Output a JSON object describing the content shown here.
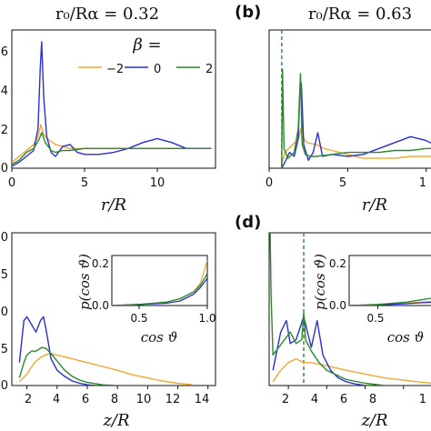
{
  "colors": {
    "orange": "#f0a830",
    "blue": "#2b2fd0",
    "green": "#2a8a2a",
    "vline": "#1f78b4"
  },
  "legend": {
    "beta_label": "β =",
    "entries": [
      "−2",
      "0",
      "2"
    ]
  },
  "panels": {
    "a": {
      "title": "r₀/Rα = 0.32",
      "xlabel": "r/R",
      "xticks": [
        "0",
        "5",
        "10"
      ],
      "yticks": [
        "6",
        "4",
        "2",
        "0"
      ]
    },
    "b": {
      "letter": "(b)",
      "title": "r₀/Rα = 0.63",
      "xlabel": "r/R",
      "xticks": [
        "0",
        "5",
        "1"
      ]
    },
    "c": {
      "xlabel": "z/R",
      "xticks": [
        "2",
        "4",
        "6",
        "8",
        "10",
        "12",
        "14"
      ],
      "yticks": [
        "0",
        "5",
        "0",
        "5",
        "0"
      ],
      "inset_ylabel": "p(cos ϑ)",
      "inset_xlabel": "cos ϑ",
      "inset_xticks": [
        "0.5",
        "1.0"
      ],
      "inset_yticks": [
        "0.2",
        "0.0"
      ]
    },
    "d": {
      "letter": "(d)",
      "xlabel": "z/R",
      "xticks": [
        "2",
        "4",
        "6",
        "8",
        "1"
      ],
      "inset_ylabel": "p(cos ϑ)",
      "inset_xlabel": "cos ϑ",
      "inset_xticks": [
        "0.5"
      ],
      "inset_yticks": [
        "0.2",
        "0.0"
      ]
    }
  },
  "chart_data": [
    {
      "panel": "a",
      "type": "line",
      "xlabel": "r/R",
      "xlim": [
        0,
        14
      ],
      "ylim": [
        0,
        7
      ],
      "series": [
        {
          "name": "−2",
          "color": "orange",
          "x": [
            0,
            0.5,
            1,
            1.5,
            1.8,
            2,
            2.2,
            2.6,
            3,
            3.5,
            4,
            5,
            6,
            7,
            8,
            9,
            10,
            11,
            12,
            13,
            13.7
          ],
          "y": [
            0.3,
            0.6,
            0.9,
            1.2,
            1.6,
            2.2,
            1.7,
            1.4,
            1.2,
            1.1,
            1.0,
            1.0,
            1.0,
            1.0,
            1.0,
            1.0,
            1.0,
            1.0,
            1.0,
            1.0,
            1.0
          ]
        },
        {
          "name": "0",
          "color": "blue",
          "x": [
            0,
            0.5,
            1,
            1.5,
            1.8,
            1.95,
            2.05,
            2.2,
            2.4,
            2.7,
            3,
            3.5,
            4,
            4.5,
            5,
            6,
            7,
            8,
            9,
            10,
            11,
            12,
            13,
            13.7
          ],
          "y": [
            0.1,
            0.3,
            0.6,
            0.9,
            2.0,
            5.0,
            6.4,
            3.5,
            1.6,
            0.8,
            0.6,
            1.1,
            1.2,
            0.8,
            0.7,
            0.7,
            0.8,
            1.0,
            1.3,
            1.5,
            1.3,
            1.0,
            1.0,
            1.0
          ]
        },
        {
          "name": "2",
          "color": "green",
          "x": [
            0,
            0.5,
            1,
            1.5,
            1.9,
            2.05,
            2.3,
            2.7,
            3,
            3.5,
            4,
            5,
            6,
            7,
            8,
            9,
            10,
            11,
            12,
            13,
            13.7
          ],
          "y": [
            0.2,
            0.4,
            0.8,
            1.0,
            1.5,
            1.8,
            1.3,
            0.9,
            0.8,
            0.9,
            0.9,
            1.0,
            1.0,
            1.0,
            1.0,
            1.0,
            1.0,
            1.0,
            1.0,
            1.0,
            1.0
          ]
        }
      ]
    },
    {
      "panel": "b",
      "type": "line",
      "xlabel": "r/R",
      "xlim": [
        0,
        11
      ],
      "ylim": [
        0,
        7
      ],
      "vline_x": 0.8,
      "series": [
        {
          "name": "−2",
          "color": "orange",
          "x": [
            0.8,
            1.0,
            1.5,
            1.9,
            2.0,
            2.1,
            2.4,
            3.0,
            3.5,
            4,
            5,
            6,
            7,
            8,
            9,
            10,
            11
          ],
          "y": [
            0.2,
            0.8,
            1.2,
            1.5,
            2.0,
            1.6,
            1.3,
            1.2,
            1.0,
            0.9,
            0.7,
            0.5,
            0.5,
            0.5,
            0.6,
            0.6,
            0.6
          ]
        },
        {
          "name": "0",
          "color": "blue",
          "x": [
            0.8,
            1.0,
            1.3,
            1.6,
            1.85,
            1.95,
            2.05,
            2.2,
            2.5,
            2.8,
            3.1,
            3.4,
            4,
            5,
            6,
            7,
            8,
            9,
            10,
            11
          ],
          "y": [
            0.0,
            0.3,
            0.8,
            0.6,
            1.5,
            3.8,
            4.3,
            1.2,
            0.4,
            0.8,
            1.8,
            0.6,
            0.7,
            0.6,
            0.7,
            1.0,
            1.3,
            1.6,
            1.4,
            1.0
          ]
        },
        {
          "name": "2",
          "color": "green",
          "x": [
            0.8,
            0.85,
            0.95,
            1.2,
            1.6,
            1.85,
            2.0,
            2.1,
            2.3,
            2.6,
            3,
            4,
            5,
            6,
            7,
            8,
            9,
            10,
            11
          ],
          "y": [
            0.0,
            5.0,
            1.0,
            0.5,
            0.8,
            2.0,
            4.8,
            1.2,
            0.7,
            0.6,
            0.6,
            0.7,
            0.8,
            0.8,
            0.8,
            0.9,
            0.9,
            1.0,
            1.0
          ]
        }
      ]
    },
    {
      "panel": "c",
      "type": "line",
      "xlabel": "z/R",
      "xlim": [
        1,
        14.5
      ],
      "ylim": [
        0,
        2
      ],
      "series": [
        {
          "name": "−2",
          "color": "orange",
          "x": [
            1.5,
            2,
            2.5,
            3,
            3.5,
            4,
            5,
            6,
            7,
            8,
            9,
            10,
            11,
            12,
            13
          ],
          "y": [
            0.05,
            0.15,
            0.3,
            0.38,
            0.42,
            0.4,
            0.35,
            0.3,
            0.25,
            0.2,
            0.14,
            0.1,
            0.06,
            0.03,
            0.01
          ]
        },
        {
          "name": "0",
          "color": "blue",
          "x": [
            1.5,
            1.8,
            2,
            2.3,
            2.6,
            2.9,
            3.1,
            3.3,
            3.6,
            4,
            4.5,
            5,
            5.5,
            6,
            6.5
          ],
          "y": [
            0.3,
            0.85,
            0.9,
            0.8,
            0.7,
            0.85,
            0.9,
            0.7,
            0.35,
            0.2,
            0.12,
            0.06,
            0.03,
            0.01,
            0.0
          ]
        },
        {
          "name": "2",
          "color": "green",
          "x": [
            1.5,
            1.8,
            2,
            2.3,
            2.6,
            3,
            3.3,
            3.6,
            4,
            4.5,
            5,
            5.5,
            6,
            7,
            8
          ],
          "y": [
            0.1,
            0.3,
            0.4,
            0.45,
            0.45,
            0.5,
            0.48,
            0.42,
            0.32,
            0.2,
            0.12,
            0.07,
            0.04,
            0.01,
            0.0
          ]
        }
      ]
    },
    {
      "panel": "c-inset",
      "type": "line",
      "xlabel": "cos ϑ",
      "ylabel": "p(cos ϑ)",
      "xlim": [
        0.3,
        1.0
      ],
      "ylim": [
        0,
        0.22
      ],
      "series": [
        {
          "name": "−2",
          "color": "orange",
          "x": [
            0.3,
            0.5,
            0.7,
            0.8,
            0.9,
            0.95,
            1.0
          ],
          "y": [
            0.0,
            0.005,
            0.015,
            0.03,
            0.06,
            0.1,
            0.2
          ]
        },
        {
          "name": "0",
          "color": "blue",
          "x": [
            0.3,
            0.5,
            0.7,
            0.8,
            0.9,
            0.95,
            1.0
          ],
          "y": [
            0.0,
            0.005,
            0.01,
            0.02,
            0.05,
            0.08,
            0.12
          ]
        },
        {
          "name": "2",
          "color": "green",
          "x": [
            0.3,
            0.5,
            0.7,
            0.8,
            0.9,
            0.95,
            1.0
          ],
          "y": [
            0.0,
            0.005,
            0.015,
            0.03,
            0.06,
            0.09,
            0.14
          ]
        }
      ]
    },
    {
      "panel": "d",
      "type": "line",
      "xlabel": "z/R",
      "xlim": [
        1,
        10
      ],
      "ylim": [
        0,
        2
      ],
      "vline_x": 2.8,
      "series": [
        {
          "name": "−2",
          "color": "orange",
          "x": [
            1.2,
            1.6,
            2,
            2.4,
            2.8,
            3.2,
            3.6,
            4,
            5,
            6,
            7,
            8,
            9,
            10
          ],
          "y": [
            0.05,
            0.2,
            0.3,
            0.35,
            0.3,
            0.3,
            0.28,
            0.26,
            0.2,
            0.15,
            0.1,
            0.07,
            0.04,
            0.02
          ]
        },
        {
          "name": "0",
          "color": "blue",
          "x": [
            1.2,
            1.6,
            1.9,
            2.1,
            2.4,
            2.8,
            3.2,
            3.5,
            3.8,
            4.2,
            4.6,
            5,
            5.5,
            6
          ],
          "y": [
            0.2,
            0.7,
            0.85,
            0.55,
            0.6,
            0.9,
            0.5,
            0.85,
            0.4,
            0.2,
            0.1,
            0.05,
            0.02,
            0.0
          ]
        },
        {
          "name": "2",
          "color": "green",
          "x": [
            1.05,
            1.1,
            1.2,
            1.5,
            1.8,
            2.1,
            2.4,
            2.7,
            2.8,
            2.9,
            3.2,
            3.6,
            4,
            5,
            6,
            7
          ],
          "y": [
            2.0,
            1.2,
            0.4,
            0.5,
            0.6,
            0.7,
            0.55,
            0.6,
            0.95,
            0.6,
            0.45,
            0.3,
            0.2,
            0.08,
            0.03,
            0.0
          ]
        }
      ]
    },
    {
      "panel": "d-inset",
      "type": "line",
      "xlabel": "cos ϑ",
      "ylabel": "p(cos ϑ)",
      "xlim": [
        0.3,
        1.0
      ],
      "ylim": [
        0,
        0.22
      ],
      "series": [
        {
          "name": "−2",
          "color": "orange",
          "x": [
            0.3,
            0.5,
            0.7,
            0.8,
            0.9
          ],
          "y": [
            0.0,
            0.004,
            0.01,
            0.015,
            0.02
          ]
        },
        {
          "name": "0",
          "color": "blue",
          "x": [
            0.3,
            0.5,
            0.7,
            0.8,
            0.9
          ],
          "y": [
            0.0,
            0.003,
            0.008,
            0.012,
            0.015
          ]
        },
        {
          "name": "2",
          "color": "green",
          "x": [
            0.3,
            0.5,
            0.7,
            0.8,
            0.9
          ],
          "y": [
            0.0,
            0.005,
            0.015,
            0.025,
            0.035
          ]
        }
      ]
    }
  ]
}
